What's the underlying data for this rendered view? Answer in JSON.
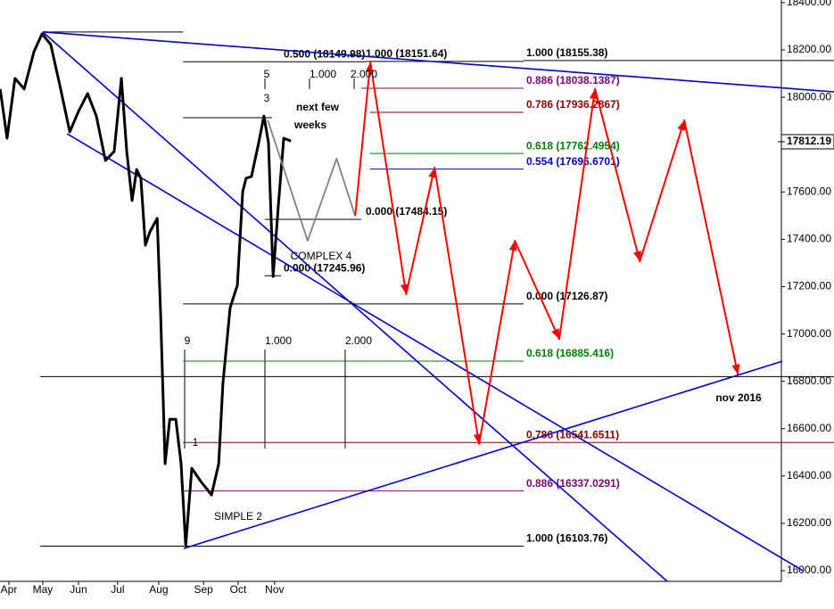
{
  "chart_data": {
    "type": "line",
    "xlim": [
      -0.235,
      20.3
    ],
    "xticks": [
      {
        "value": 0,
        "label": "Apr"
      },
      {
        "value": 0.89,
        "label": "May"
      },
      {
        "value": 1.83,
        "label": "Jun"
      },
      {
        "value": 2.86,
        "label": "Jul"
      },
      {
        "value": 3.94,
        "label": "Aug"
      },
      {
        "value": 5.12,
        "label": "Sep"
      },
      {
        "value": 6.03,
        "label": "Oct"
      },
      {
        "value": 6.99,
        "label": "Nov"
      }
    ],
    "ylim": [
      15955,
      18411
    ],
    "yticks": [
      {
        "value": 16000,
        "label": "16000.00"
      },
      {
        "value": 16200,
        "label": "16200.00"
      },
      {
        "value": 16400,
        "label": "16400.00"
      },
      {
        "value": 16600,
        "label": "16600.00"
      },
      {
        "value": 16800,
        "label": "16800.00"
      },
      {
        "value": 17000,
        "label": "17000.00"
      },
      {
        "value": 17200,
        "label": "17200.00"
      },
      {
        "value": 17400,
        "label": "17400.00"
      },
      {
        "value": 17600,
        "label": "17600.00"
      },
      {
        "value": 17800,
        "label": "17800.00"
      },
      {
        "value": 18000,
        "label": "18000.00"
      },
      {
        "value": 18200,
        "label": "18200.00"
      },
      {
        "value": 18400,
        "label": "18400.00"
      }
    ],
    "last_price": 17812.19,
    "series": [
      {
        "color": "#000000",
        "x": [
          -0.23,
          -0.05,
          0.16,
          0.4,
          0.66,
          0.87,
          1.1,
          1.36,
          1.6,
          1.83,
          2.07,
          2.3,
          2.54,
          2.77,
          2.96,
          3.1,
          3.24,
          3.36,
          3.47,
          3.59,
          3.71,
          3.9,
          3.99,
          4.11,
          4.23,
          4.39,
          4.53,
          4.65,
          4.81,
          5.05,
          5.33,
          5.52,
          5.63,
          5.82,
          6.01,
          6.15,
          6.24,
          6.38,
          6.57,
          6.71,
          6.83,
          6.95,
          7.09,
          7.23,
          7.42
        ],
        "values": [
          18035,
          17827,
          18080,
          18035,
          18193,
          18268,
          18223,
          18035,
          17854,
          17940,
          18016,
          17921,
          17733,
          17771,
          18080,
          17771,
          17564,
          17695,
          17658,
          17375,
          17432,
          17488,
          17093,
          16452,
          16640,
          16640,
          16452,
          16105,
          16433,
          16377,
          16320,
          16452,
          16791,
          17111,
          17206,
          17601,
          17658,
          17665,
          17808,
          17921,
          17808,
          17243,
          17545,
          17827,
          17815
        ]
      },
      {
        "color": "#808080",
        "x": [
          6.81,
          7.86,
          8.62,
          9.11
        ],
        "values": [
          17903,
          17394,
          17741,
          17499
        ]
      },
      {
        "color": "#ff0000",
        "x": [
          9.11,
          9.51,
          10.45,
          11.2,
          12.37,
          13.31,
          14.48,
          15.42,
          16.6,
          17.77,
          19.18
        ],
        "values": [
          17499,
          18148,
          17168,
          17703,
          16535,
          17394,
          16979,
          18035,
          17307,
          17903,
          16829
        ]
      }
    ],
    "trendlines": [
      {
        "color": "#0000cc",
        "x": [
          0.89,
          21.71
        ],
        "values": [
          18276,
          18023
        ]
      },
      {
        "color": "#0000cc",
        "x": [
          0.89,
          17.32
        ],
        "values": [
          18276,
          15955
        ]
      },
      {
        "color": "#0000cc",
        "x": [
          1.53,
          20.89
        ],
        "values": [
          17846,
          16000
        ]
      },
      {
        "color": "#0000cc",
        "x": [
          4.6,
          20.35
        ],
        "values": [
          16094,
          16885
        ]
      }
    ],
    "levels": [
      {
        "label": "0.500 (18149.98)",
        "value": 18149.98,
        "x": [
          4.58,
          9.39
        ],
        "color": "#000000"
      },
      {
        "label": "1.000 (18151.64)",
        "value": 18151.64,
        "x": [
          9.39,
          13.54
        ],
        "color": "#000000"
      },
      {
        "label": "1.000 (18155.38)",
        "value": 18155.38,
        "x": [
          13.54,
          21.71
        ],
        "color": "#000000"
      },
      {
        "label": "0.886 (18038.1387)",
        "value": 18038.1387,
        "x": [
          9.27,
          13.54
        ],
        "color": "#7f007f"
      },
      {
        "label": "0.786 (17936.2867)",
        "value": 17936.2867,
        "x": [
          9.5,
          13.54
        ],
        "color": "#8b0000"
      },
      {
        "label": "0.618 (17762.4954)",
        "value": 17762.4954,
        "x": [
          9.5,
          13.54
        ],
        "color": "#008000"
      },
      {
        "label": "0.554 (17696.6701)",
        "value": 17696.6701,
        "x": [
          9.5,
          13.54
        ],
        "color": "#0000cc"
      },
      {
        "label": "0.000 (17484.15)",
        "value": 17484.15,
        "x": [
          6.73,
          9.27
        ],
        "color": "#000000"
      },
      {
        "label": "0.000 (17245.96)",
        "value": 17245.96,
        "x": [
          6.73,
          7.16
        ],
        "color": "#000000"
      },
      {
        "label": "0.000 (17126.87)",
        "value": 17126.87,
        "x": [
          4.58,
          13.54
        ],
        "color": "#000000"
      },
      {
        "label": "0.618 (16885.416)",
        "value": 16885.416,
        "x": [
          4.58,
          13.54
        ],
        "color": "#008000"
      },
      {
        "label": "0.786 (16541.6511)",
        "value": 16541.6511,
        "x": [
          4.58,
          21.71
        ],
        "color": "#8b0000"
      },
      {
        "label": "0.886 (16337.0291)",
        "value": 16337.0291,
        "x": [
          4.58,
          13.54
        ],
        "color": "#7f007f"
      },
      {
        "label": "1.000 (16103.76)",
        "value": 16103.76,
        "x": [
          0.82,
          13.54
        ],
        "color": "#000000"
      },
      {
        "value": 18276,
        "x": [
          0.89,
          4.58
        ],
        "color": "#000000"
      },
      {
        "value": 17914,
        "x": [
          4.58,
          6.92
        ],
        "color": "#000000"
      },
      {
        "value": 16820,
        "x": [
          0.82,
          21.71
        ],
        "color": "#000000"
      }
    ],
    "annotations": [
      "5",
      "1.000",
      "2.000",
      "3",
      "next few",
      "weeks",
      "COMPLEX 4",
      "9",
      "1.000",
      "2.000",
      "1",
      "SIMPLE 2",
      "nov 2016"
    ]
  }
}
